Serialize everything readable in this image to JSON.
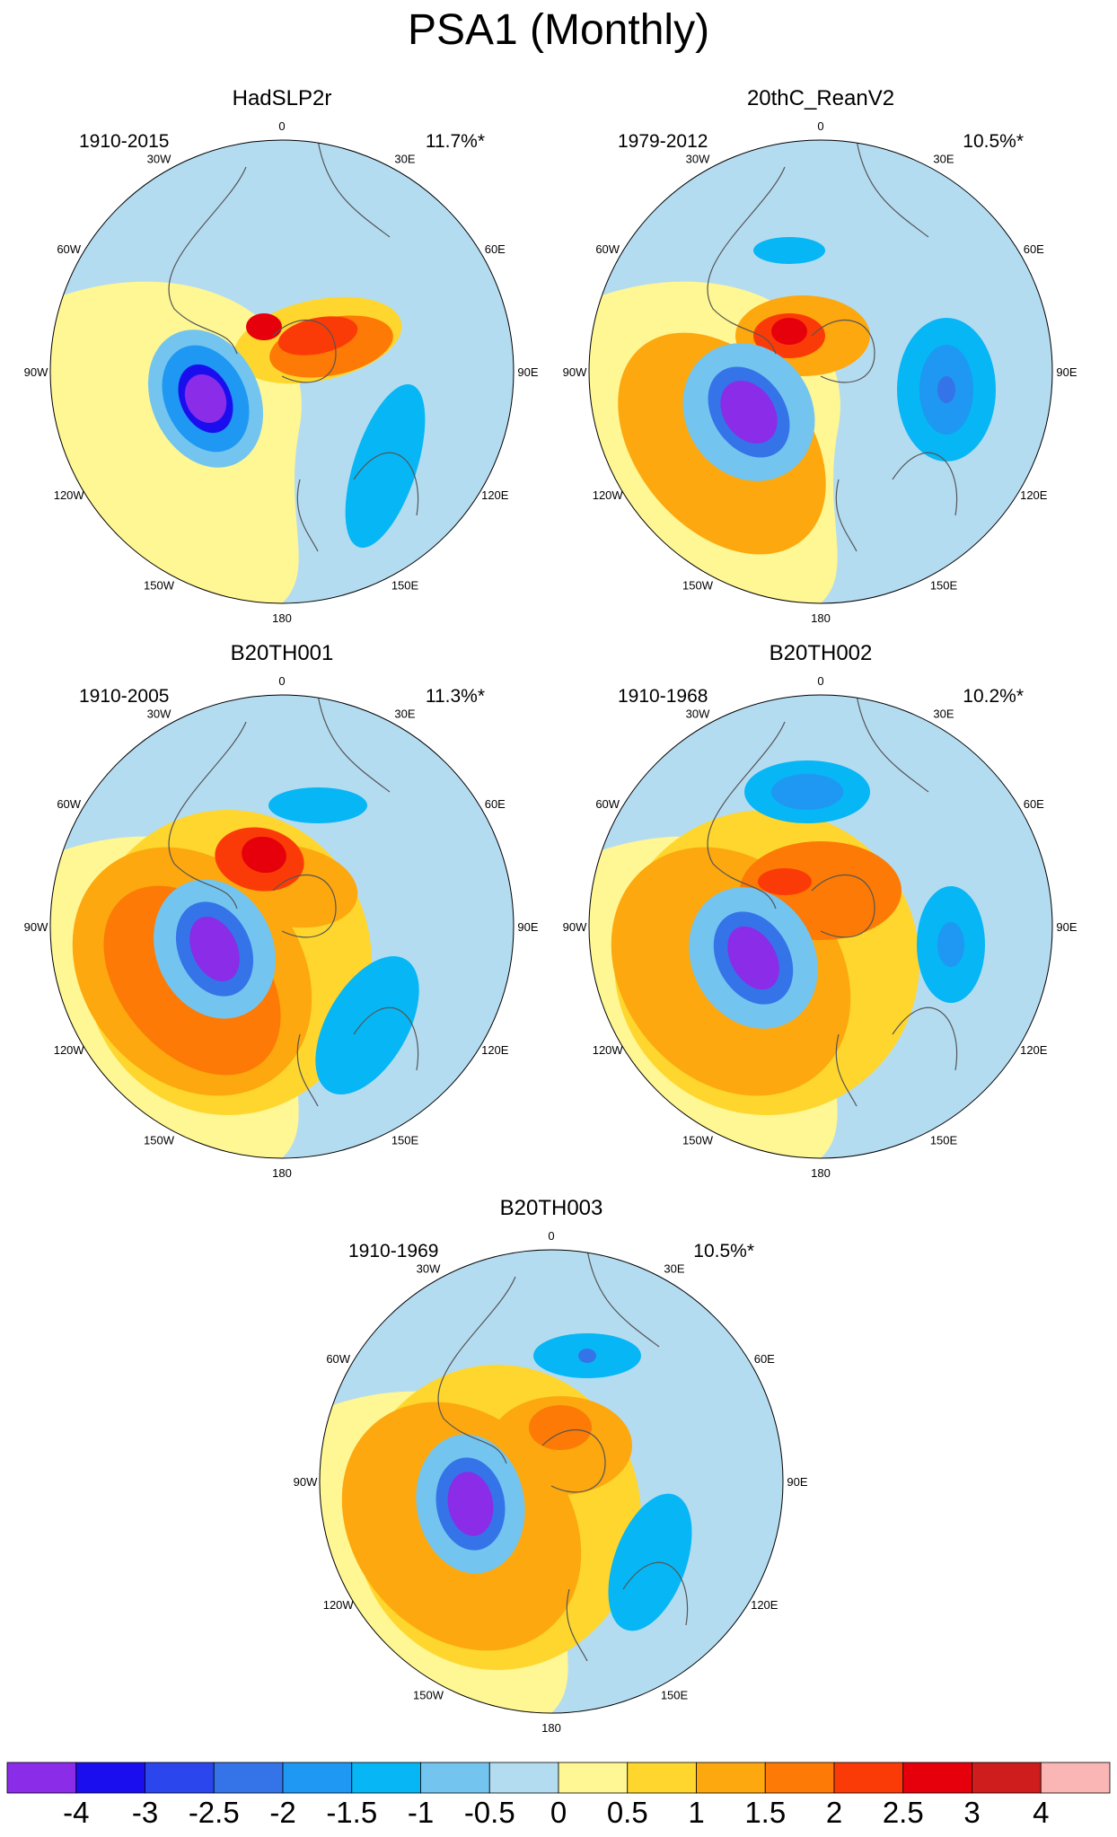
{
  "figure": {
    "title": "PSA1 (Monthly)"
  },
  "panels": [
    {
      "title": "HadSLP2r",
      "period": "1910-2015",
      "variance": "11.7%*",
      "shift": [
        0,
        0
      ],
      "blobs": [
        {
          "cx": 40,
          "cy": -35,
          "rx": 95,
          "ry": 45,
          "rot": -12,
          "level": 0.5
        },
        {
          "cx": 55,
          "cy": -28,
          "rx": 70,
          "ry": 32,
          "rot": -12,
          "level": 1.5
        },
        {
          "cx": 40,
          "cy": -40,
          "rx": 45,
          "ry": 20,
          "rot": -12,
          "level": 2
        },
        {
          "cx": -20,
          "cy": -50,
          "rx": 20,
          "ry": 15,
          "rot": 0,
          "level": 2.5
        },
        {
          "cx": -85,
          "cy": 30,
          "rx": 60,
          "ry": 80,
          "rot": -25,
          "level": -0.5
        },
        {
          "cx": -85,
          "cy": 30,
          "rx": 45,
          "ry": 62,
          "rot": -25,
          "level": -1.5
        },
        {
          "cx": -85,
          "cy": 30,
          "rx": 28,
          "ry": 40,
          "rot": -25,
          "level": -3
        },
        {
          "cx": -85,
          "cy": 30,
          "rx": 22,
          "ry": 28,
          "rot": -25,
          "level": -4
        },
        {
          "cx": 115,
          "cy": 105,
          "rx": 35,
          "ry": 95,
          "rot": 18,
          "level": -1
        }
      ]
    },
    {
      "title": "20thC_ReanV2",
      "period": "1979-2012",
      "variance": "10.5%*",
      "shift": [
        0,
        0
      ],
      "blobs": [
        {
          "cx": -110,
          "cy": 80,
          "rx": 95,
          "ry": 140,
          "rot": -40,
          "level": 1
        },
        {
          "cx": -20,
          "cy": -40,
          "rx": 75,
          "ry": 45,
          "rot": 0,
          "level": 1
        },
        {
          "cx": -35,
          "cy": -40,
          "rx": 40,
          "ry": 25,
          "rot": 0,
          "level": 2
        },
        {
          "cx": -35,
          "cy": -45,
          "rx": 20,
          "ry": 15,
          "rot": 0,
          "level": 2.5
        },
        {
          "cx": -80,
          "cy": 45,
          "rx": 70,
          "ry": 80,
          "rot": -35,
          "level": -0.5
        },
        {
          "cx": -80,
          "cy": 45,
          "rx": 40,
          "ry": 55,
          "rot": -35,
          "level": -2
        },
        {
          "cx": -80,
          "cy": 45,
          "rx": 28,
          "ry": 38,
          "rot": -35,
          "level": -4
        },
        {
          "cx": -35,
          "cy": -135,
          "rx": 40,
          "ry": 15,
          "rot": 0,
          "level": -1
        },
        {
          "cx": 140,
          "cy": 20,
          "rx": 55,
          "ry": 80,
          "rot": 0,
          "level": -1
        },
        {
          "cx": 140,
          "cy": 20,
          "rx": 30,
          "ry": 50,
          "rot": 0,
          "level": -1.5
        },
        {
          "cx": 140,
          "cy": 20,
          "rx": 10,
          "ry": 15,
          "rot": 0,
          "level": -2
        }
      ]
    },
    {
      "title": "B20TH001",
      "period": "1910-2005",
      "variance": "11.3%*",
      "shift": [
        0,
        0
      ],
      "blobs": [
        {
          "cx": -60,
          "cy": 40,
          "rx": 160,
          "ry": 170,
          "rot": 0,
          "level": 0.5
        },
        {
          "cx": -100,
          "cy": 50,
          "rx": 120,
          "ry": 150,
          "rot": -40,
          "level": 1
        },
        {
          "cx": -100,
          "cy": 60,
          "rx": 80,
          "ry": 120,
          "rot": -40,
          "level": 1.5
        },
        {
          "cx": 10,
          "cy": -45,
          "rx": 75,
          "ry": 45,
          "rot": 10,
          "level": 1
        },
        {
          "cx": -25,
          "cy": -75,
          "rx": 50,
          "ry": 35,
          "rot": 10,
          "level": 2
        },
        {
          "cx": -20,
          "cy": -80,
          "rx": 25,
          "ry": 20,
          "rot": 10,
          "level": 2.5
        },
        {
          "cx": -75,
          "cy": 25,
          "rx": 65,
          "ry": 80,
          "rot": -25,
          "level": -0.5
        },
        {
          "cx": -75,
          "cy": 25,
          "rx": 40,
          "ry": 55,
          "rot": -25,
          "level": -2
        },
        {
          "cx": -75,
          "cy": 25,
          "rx": 25,
          "ry": 38,
          "rot": -25,
          "level": -4
        },
        {
          "cx": 40,
          "cy": -135,
          "rx": 55,
          "ry": 20,
          "rot": 0,
          "level": -1
        },
        {
          "cx": 95,
          "cy": 110,
          "rx": 45,
          "ry": 85,
          "rot": 30,
          "level": -1
        }
      ]
    },
    {
      "title": "B20TH002",
      "period": "1910-1968",
      "variance": "10.2%*",
      "shift": [
        0,
        0
      ],
      "blobs": [
        {
          "cx": -60,
          "cy": 40,
          "rx": 170,
          "ry": 170,
          "rot": 0,
          "level": 0.5
        },
        {
          "cx": -100,
          "cy": 50,
          "rx": 120,
          "ry": 150,
          "rot": -40,
          "level": 1
        },
        {
          "cx": 0,
          "cy": -40,
          "rx": 90,
          "ry": 55,
          "rot": 0,
          "level": 1.5
        },
        {
          "cx": -40,
          "cy": -50,
          "rx": 30,
          "ry": 15,
          "rot": 0,
          "level": 2
        },
        {
          "cx": -75,
          "cy": 35,
          "rx": 68,
          "ry": 82,
          "rot": -30,
          "level": -0.5
        },
        {
          "cx": -75,
          "cy": 35,
          "rx": 40,
          "ry": 55,
          "rot": -30,
          "level": -2
        },
        {
          "cx": -75,
          "cy": 35,
          "rx": 25,
          "ry": 38,
          "rot": -30,
          "level": -4
        },
        {
          "cx": -15,
          "cy": -150,
          "rx": 70,
          "ry": 35,
          "rot": 0,
          "level": -1
        },
        {
          "cx": -15,
          "cy": -150,
          "rx": 40,
          "ry": 20,
          "rot": 0,
          "level": -1.5
        },
        {
          "cx": 145,
          "cy": 20,
          "rx": 38,
          "ry": 65,
          "rot": 0,
          "level": -1
        },
        {
          "cx": 145,
          "cy": 20,
          "rx": 15,
          "ry": 25,
          "rot": 0,
          "level": -1.5
        }
      ]
    },
    {
      "title": "B20TH003",
      "period": "1910-1969",
      "variance": "10.5%*",
      "shift": [
        0,
        0
      ],
      "blobs": [
        {
          "cx": -60,
          "cy": 40,
          "rx": 160,
          "ry": 170,
          "rot": 0,
          "level": 0.5
        },
        {
          "cx": -100,
          "cy": 50,
          "rx": 120,
          "ry": 150,
          "rot": -40,
          "level": 1
        },
        {
          "cx": 10,
          "cy": -40,
          "rx": 80,
          "ry": 55,
          "rot": 0,
          "level": 1
        },
        {
          "cx": 10,
          "cy": -60,
          "rx": 35,
          "ry": 25,
          "rot": 0,
          "level": 1.5
        },
        {
          "cx": -90,
          "cy": 25,
          "rx": 60,
          "ry": 78,
          "rot": -10,
          "level": -0.5
        },
        {
          "cx": -90,
          "cy": 25,
          "rx": 38,
          "ry": 52,
          "rot": -10,
          "level": -2
        },
        {
          "cx": -90,
          "cy": 25,
          "rx": 25,
          "ry": 36,
          "rot": -10,
          "level": -4
        },
        {
          "cx": 40,
          "cy": -140,
          "rx": 60,
          "ry": 25,
          "rot": 0,
          "level": -1
        },
        {
          "cx": 40,
          "cy": -140,
          "rx": 10,
          "ry": 8,
          "rot": 0,
          "level": -2
        },
        {
          "cx": 110,
          "cy": 90,
          "rx": 40,
          "ry": 80,
          "rot": 20,
          "level": -1
        }
      ]
    }
  ],
  "map_labels": {
    "top": "0",
    "bottom": "180",
    "left": "90W",
    "right": "90E",
    "l30": "30W",
    "r30": "30E",
    "l60": "60W",
    "r60": "60E",
    "l120": "120W",
    "r120": "120E",
    "l150": "150W",
    "r150": "150E"
  },
  "colorbar": {
    "colors": [
      "#8a2ce8",
      "#1a0eef",
      "#2a46ec",
      "#3574e8",
      "#1e98f2",
      "#06b6f5",
      "#73c5ef",
      "#b4dcf1",
      "#fff694",
      "#fed62d",
      "#fca80e",
      "#fc7a05",
      "#fb3b07",
      "#e6000c",
      "#cf1c1c",
      "#fab6b5"
    ],
    "levels": [
      -4,
      -3,
      -2.5,
      -2,
      -1.5,
      -1,
      -0.5,
      0,
      0.5,
      1,
      1.5,
      2,
      2.5,
      3,
      4
    ],
    "tick_labels": [
      "-4",
      "-3",
      "-2.5",
      "-2",
      "-1.5",
      "-1",
      "-0.5",
      "0",
      "0.5",
      "1",
      "1.5",
      "2",
      "2.5",
      "3",
      "4"
    ]
  },
  "colors": {
    "positive_default": "#fff694",
    "negative_default": "#b4dcf1",
    "coast": "#555555"
  }
}
